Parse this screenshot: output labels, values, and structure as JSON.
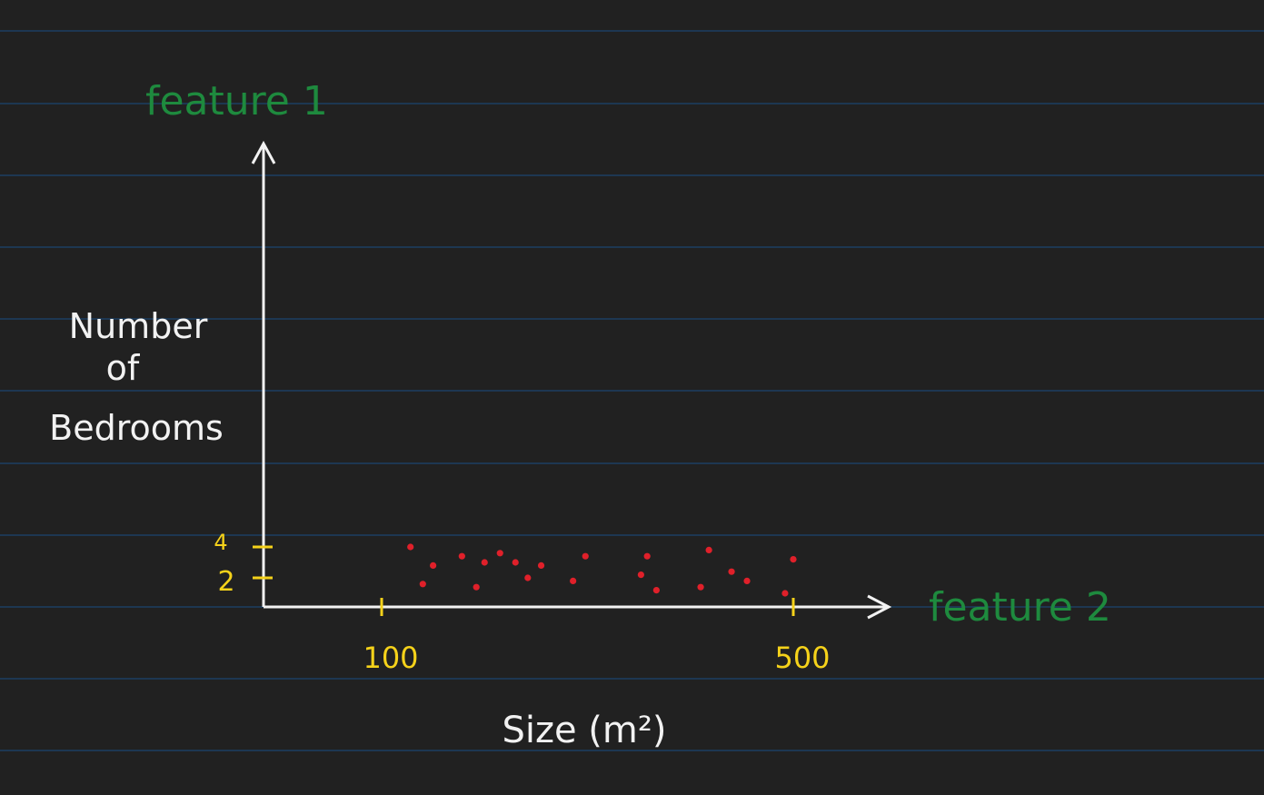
{
  "colors": {
    "background": "#212121",
    "rule_line": "#1c3f63",
    "axis": "#f2f2f2",
    "label_white": "#f2f2f2",
    "feature_green": "#1e8a3e",
    "tick_yellow": "#f5d21a",
    "point_red": "#e0202a"
  },
  "chart_data": {
    "type": "scatter",
    "title": "",
    "y_feature_label": "feature 1",
    "x_feature_label": "feature 2",
    "ylabel_lines": [
      "Number",
      "of",
      "Bedrooms"
    ],
    "xlabel": "Size (m²)",
    "x_ticks": [
      {
        "value": 100,
        "label": "100"
      },
      {
        "value": 500,
        "label": "500"
      }
    ],
    "y_ticks": [
      {
        "value": 2,
        "label": "2"
      },
      {
        "value": 4,
        "label": "4"
      }
    ],
    "xlim": [
      0,
      560
    ],
    "ylim": [
      0,
      32
    ],
    "grid": false,
    "points": [
      {
        "x": 128,
        "y": 4.0
      },
      {
        "x": 140,
        "y": 1.6
      },
      {
        "x": 150,
        "y": 2.8
      },
      {
        "x": 178,
        "y": 3.4
      },
      {
        "x": 192,
        "y": 1.4
      },
      {
        "x": 200,
        "y": 3.0
      },
      {
        "x": 215,
        "y": 3.6
      },
      {
        "x": 230,
        "y": 3.0
      },
      {
        "x": 242,
        "y": 2.0
      },
      {
        "x": 255,
        "y": 2.8
      },
      {
        "x": 286,
        "y": 1.8
      },
      {
        "x": 298,
        "y": 3.4
      },
      {
        "x": 352,
        "y": 2.2
      },
      {
        "x": 358,
        "y": 3.4
      },
      {
        "x": 367,
        "y": 1.2
      },
      {
        "x": 410,
        "y": 1.4
      },
      {
        "x": 418,
        "y": 3.8
      },
      {
        "x": 440,
        "y": 2.4
      },
      {
        "x": 455,
        "y": 1.8
      },
      {
        "x": 492,
        "y": 1.0
      },
      {
        "x": 500,
        "y": 3.2
      }
    ]
  }
}
